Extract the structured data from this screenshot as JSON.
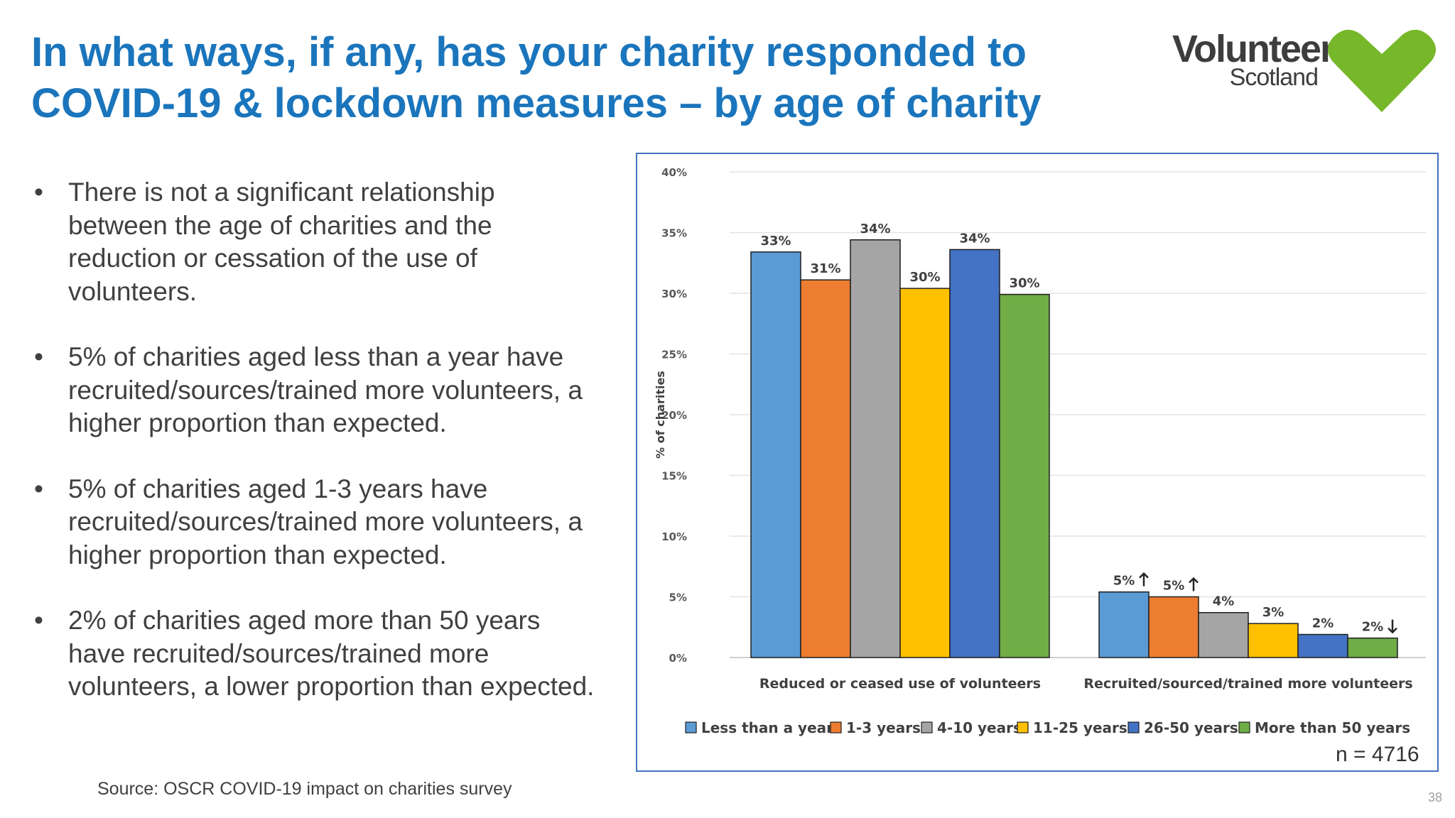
{
  "slide": {
    "title": "In what ways, if any, has your charity responded to COVID-19 & lockdown measures – by age of charity",
    "logo": {
      "word": "Volunteer",
      "sub": "Scotland",
      "icon": "heart-icon",
      "icon_color": "#76b82a"
    },
    "bullets": [
      "There is not a significant relationship between the age of charities and the reduction or cessation of the use of volunteers.",
      "5% of charities aged less than a year have recruited/sources/trained more volunteers, a higher proportion than expected.",
      "5% of charities aged 1-3 years have recruited/sources/trained more volunteers, a higher proportion than expected.",
      "2% of charities aged more than 50 years have recruited/sources/trained more volunteers, a lower proportion than expected."
    ],
    "bullet_symbol": "•",
    "source": "Source: OSCR COVID-19 impact on charities survey",
    "page_number": "38",
    "sample_size": "n = 4716"
  },
  "chart_data": {
    "type": "bar",
    "title": "",
    "xlabel": "",
    "ylabel": "% of charities",
    "ylim": [
      0,
      40
    ],
    "yticks": [
      "0%",
      "5%",
      "10%",
      "15%",
      "20%",
      "25%",
      "30%",
      "35%",
      "40%"
    ],
    "grid": true,
    "legend_position": "bottom",
    "categories": [
      "Reduced or ceased use of volunteers",
      "Recruited/sourced/trained more volunteers"
    ],
    "series": [
      {
        "name": "Less than a year",
        "color": "#5b9bd5",
        "values": [
          33.4,
          5.4
        ],
        "labels": [
          "33%",
          "5%"
        ],
        "markers": [
          "",
          "up"
        ]
      },
      {
        "name": "1-3 years",
        "color": "#ed7d31",
        "values": [
          31.1,
          5.0
        ],
        "labels": [
          "31%",
          "5%"
        ],
        "markers": [
          "",
          "up"
        ]
      },
      {
        "name": "4-10 years",
        "color": "#a5a5a5",
        "values": [
          34.4,
          3.7
        ],
        "labels": [
          "34%",
          "4%"
        ],
        "markers": [
          "",
          ""
        ]
      },
      {
        "name": "11-25 years",
        "color": "#ffc000",
        "values": [
          30.4,
          2.8
        ],
        "labels": [
          "30%",
          "3%"
        ],
        "markers": [
          "",
          ""
        ]
      },
      {
        "name": "26-50 years",
        "color": "#4472c4",
        "values": [
          33.6,
          1.9
        ],
        "labels": [
          "34%",
          "2%"
        ],
        "markers": [
          "",
          ""
        ]
      },
      {
        "name": "More than 50 years",
        "color": "#70ad47",
        "values": [
          29.9,
          1.6
        ],
        "labels": [
          "30%",
          "2%"
        ],
        "markers": [
          "",
          "down"
        ]
      }
    ]
  }
}
